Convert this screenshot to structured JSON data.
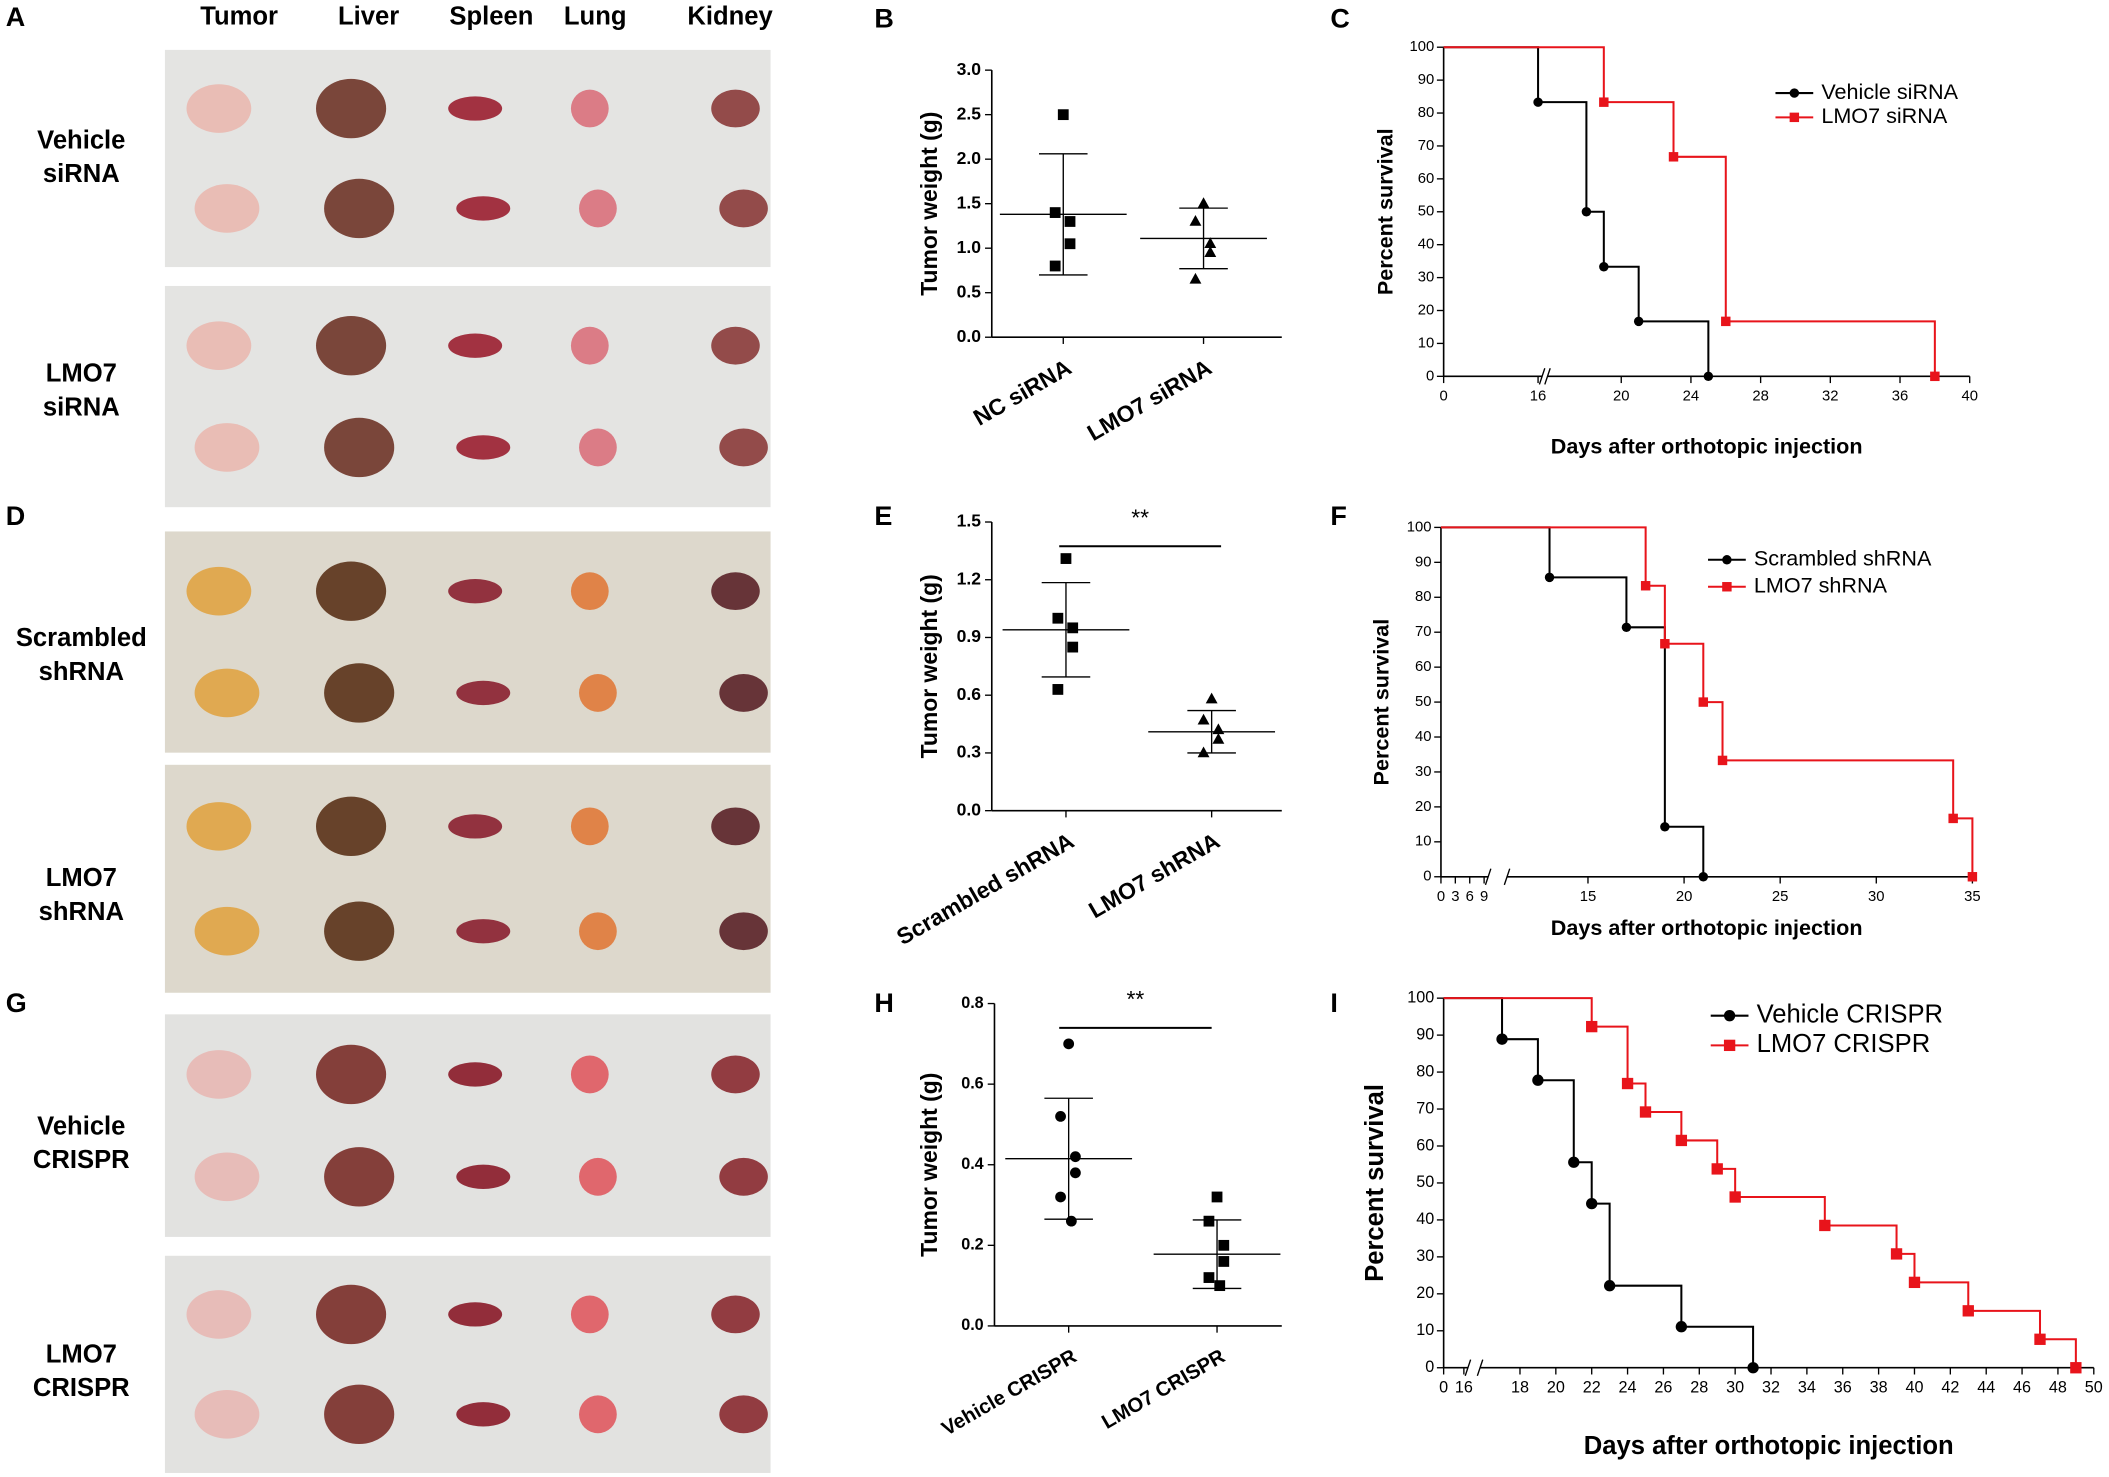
{
  "panels": [
    {
      "letter": "A",
      "columns": [
        "Tumor",
        "Liver",
        "Spleen",
        "Lung",
        "Kidney"
      ],
      "rows": [
        [
          "Vehicle",
          "siRNA"
        ],
        [
          "LMO7",
          "siRNA"
        ]
      ]
    },
    {
      "letter": "D",
      "rows": [
        [
          "Scrambled",
          "shRNA"
        ],
        [
          "LMO7",
          "shRNA"
        ]
      ]
    },
    {
      "letter": "G",
      "rows": [
        [
          "Vehicle",
          "CRISPR"
        ],
        [
          "LMO7",
          "CRISPR"
        ]
      ]
    }
  ],
  "chart_data": [
    {
      "type": "dotplot",
      "letter": "B",
      "ylabel": "Tumor weight (g)",
      "categories": [
        "NC siRNA",
        "LMO7 siRNA"
      ],
      "groups": [
        {
          "marker": "square",
          "values": [
            2.5,
            1.4,
            1.3,
            1.05,
            0.8
          ],
          "mean": 1.38,
          "sd": 0.68
        },
        {
          "marker": "triangle",
          "values": [
            1.5,
            1.3,
            1.05,
            0.95,
            0.65
          ],
          "mean": 1.11,
          "sd": 0.34
        }
      ],
      "ylim": [
        0,
        3
      ],
      "yticks": [
        {
          "value": 0,
          "label": "0.0"
        },
        0.5,
        {
          "value": 1,
          "label": "1.0"
        },
        1.5,
        {
          "value": 2,
          "label": "2.0"
        },
        2.5,
        {
          "value": 3,
          "label": "3.0"
        }
      ]
    },
    {
      "type": "survival",
      "letter": "C",
      "xlabel": "Days after orthotopic injection",
      "ylabel": "Percent survival",
      "xlim": [
        0,
        40
      ],
      "xbreak": [
        16,
        16
      ],
      "xticks": [
        0,
        16,
        20,
        24,
        28,
        32,
        36,
        40
      ],
      "ylim": [
        0,
        100
      ],
      "yticks": [
        0,
        10,
        20,
        30,
        40,
        50,
        60,
        70,
        80,
        90,
        100
      ],
      "series": [
        {
          "name": "Vehicle siRNA",
          "color": "#000000",
          "marker": "circle",
          "x": [
            0,
            16,
            18,
            19,
            21,
            25
          ],
          "values": [
            100,
            83.3,
            50,
            33.3,
            16.7,
            0
          ]
        },
        {
          "name": "LMO7 siRNA",
          "color": "#e8141b",
          "marker": "square",
          "x": [
            0,
            19,
            23,
            26,
            38
          ],
          "values": [
            100,
            83.3,
            66.7,
            16.7,
            0
          ]
        }
      ]
    },
    {
      "type": "dotplot",
      "letter": "E",
      "ylabel": "Tumor weight (g)",
      "categories": [
        "Scrambled shRNA",
        "LMO7 shRNA"
      ],
      "annotation": "**",
      "groups": [
        {
          "marker": "square",
          "values": [
            1.31,
            1.0,
            0.95,
            0.85,
            0.63
          ],
          "mean": 0.94,
          "sd": 0.245
        },
        {
          "marker": "triangle",
          "values": [
            0.58,
            0.47,
            0.42,
            0.37,
            0.3
          ],
          "mean": 0.41,
          "sd": 0.11
        }
      ],
      "ylim": [
        0,
        1.5
      ],
      "yticks": [
        {
          "value": 0,
          "label": "0.0"
        },
        0.3,
        0.6,
        0.9,
        1.2,
        1.5
      ]
    },
    {
      "type": "survival",
      "letter": "F",
      "xlabel": "Days after orthotopic injection",
      "ylabel": "Percent survival",
      "xlim": [
        0,
        35
      ],
      "xbreak": [
        9,
        11
      ],
      "xticks": [
        0,
        3,
        6,
        9,
        15,
        20,
        25,
        30,
        35
      ],
      "ylim": [
        0,
        100
      ],
      "yticks": [
        0,
        10,
        20,
        30,
        40,
        50,
        60,
        70,
        80,
        90,
        100
      ],
      "series": [
        {
          "name": "Scrambled shRNA",
          "color": "#000000",
          "marker": "circle",
          "x": [
            0,
            13,
            17,
            19,
            21
          ],
          "values": [
            100,
            85.7,
            71.4,
            14.3,
            0
          ]
        },
        {
          "name": "LMO7 shRNA",
          "color": "#e8141b",
          "marker": "square",
          "x": [
            0,
            18,
            19,
            21,
            22,
            34,
            35
          ],
          "values": [
            100,
            83.3,
            66.7,
            50,
            33.3,
            16.7,
            0
          ]
        }
      ]
    },
    {
      "type": "dotplot",
      "letter": "H",
      "ylabel": "Tumor weight (g)",
      "categories": [
        "Vehicle CRISPR",
        "LMO7 CRISPR"
      ],
      "annotation": "**",
      "groups": [
        {
          "marker": "circle",
          "values": [
            0.7,
            0.52,
            0.42,
            0.38,
            0.32,
            0.26
          ],
          "mean": 0.415,
          "sd": 0.15
        },
        {
          "marker": "square",
          "values": [
            0.32,
            0.26,
            0.2,
            0.16,
            0.12,
            0.1
          ],
          "mean": 0.178,
          "sd": 0.085
        }
      ],
      "ylim": [
        0,
        0.8
      ],
      "yticks": [
        {
          "value": 0,
          "label": "0.0"
        },
        0.2,
        0.4,
        0.6,
        0.8
      ]
    },
    {
      "type": "survival",
      "letter": "I",
      "xlabel": "Days after orthotopic injection",
      "ylabel": "Percent survival",
      "xlim": [
        0,
        50
      ],
      "xbreak": [
        16,
        16
      ],
      "xticks": [
        0,
        16,
        18,
        20,
        22,
        24,
        26,
        28,
        30,
        32,
        34,
        36,
        38,
        40,
        42,
        44,
        46,
        48,
        50
      ],
      "ylim": [
        0,
        100
      ],
      "yticks": [
        0,
        10,
        20,
        30,
        40,
        50,
        60,
        70,
        80,
        90,
        100
      ],
      "series": [
        {
          "name": "Vehicle CRISPR",
          "color": "#000000",
          "marker": "circle",
          "x": [
            0,
            17,
            19,
            21,
            22,
            23,
            27,
            31
          ],
          "values": [
            100,
            88.9,
            77.8,
            55.6,
            44.4,
            22.2,
            11.1,
            0
          ]
        },
        {
          "name": "LMO7 CRISPR",
          "color": "#e8141b",
          "marker": "square",
          "x": [
            0,
            22,
            24,
            25,
            27,
            29,
            30,
            35,
            39,
            40,
            43,
            47,
            49
          ],
          "values": [
            100,
            92.3,
            76.9,
            69.2,
            61.5,
            53.8,
            46.2,
            38.5,
            30.8,
            23.1,
            15.4,
            7.7,
            0
          ]
        }
      ]
    }
  ]
}
